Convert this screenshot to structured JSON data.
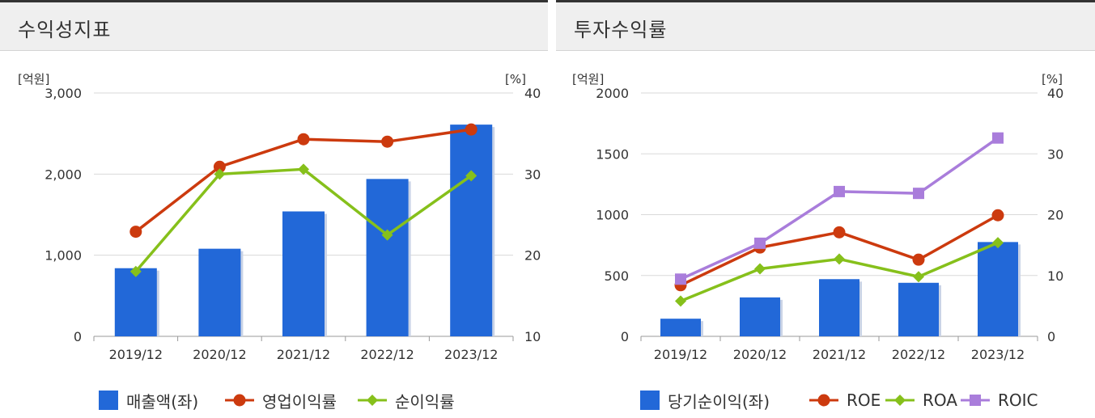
{
  "panels": [
    {
      "title": "수익성지표",
      "legend": [
        {
          "label": "매출액(좌)",
          "color": "#2268d8",
          "marker": "bar"
        },
        {
          "label": "영업이익률",
          "color": "#cc3a0e",
          "marker": "circle"
        },
        {
          "label": "순이익률",
          "color": "#86c01b",
          "marker": "diamond"
        }
      ]
    },
    {
      "title": "투자수익률",
      "legend": [
        {
          "label": "당기순이익(좌)",
          "color": "#2268d8",
          "marker": "bar"
        },
        {
          "label": "ROE",
          "color": "#cc3a0e",
          "marker": "circle"
        },
        {
          "label": "ROA",
          "color": "#86c01b",
          "marker": "diamond"
        },
        {
          "label": "ROIC",
          "color": "#a97ddb",
          "marker": "square"
        }
      ]
    }
  ],
  "chart_data": [
    {
      "type": "bar",
      "categories": [
        "2019/12",
        "2020/12",
        "2021/12",
        "2022/12",
        "2023/12"
      ],
      "left_axis": {
        "unit_label": "[억원]",
        "ylim": [
          0,
          3000
        ],
        "ticks": [
          "0",
          "1,000",
          "2,000",
          "3,000"
        ]
      },
      "right_axis": {
        "unit_label": "[%]",
        "ylim": [
          10,
          40
        ],
        "ticks": [
          "10",
          "20",
          "30",
          "40"
        ]
      },
      "grid": true,
      "legend_position": "bottom",
      "series": [
        {
          "name": "매출액(좌)",
          "type": "bar",
          "axis": "left",
          "color": "#2268d8",
          "values": [
            840,
            1080,
            1540,
            1940,
            2610
          ]
        },
        {
          "name": "영업이익률",
          "type": "line",
          "axis": "right",
          "color": "#cc3a0e",
          "marker": "circle",
          "values": [
            22.9,
            30.9,
            34.3,
            34.0,
            35.5
          ]
        },
        {
          "name": "순이익률",
          "type": "line",
          "axis": "right",
          "color": "#86c01b",
          "marker": "diamond",
          "values": [
            18.0,
            30.0,
            30.6,
            22.5,
            29.8
          ]
        }
      ]
    },
    {
      "type": "bar",
      "categories": [
        "2019/12",
        "2020/12",
        "2021/12",
        "2022/12",
        "2023/12"
      ],
      "left_axis": {
        "unit_label": "[억원]",
        "ylim": [
          0,
          2000
        ],
        "ticks": [
          "0",
          "500",
          "1000",
          "1500",
          "2000"
        ]
      },
      "right_axis": {
        "unit_label": "[%]",
        "ylim": [
          0,
          40
        ],
        "ticks": [
          "0",
          "10",
          "20",
          "30",
          "40"
        ]
      },
      "grid": true,
      "legend_position": "bottom",
      "series": [
        {
          "name": "당기순이익(좌)",
          "type": "bar",
          "axis": "left",
          "color": "#2268d8",
          "values": [
            145,
            320,
            470,
            440,
            775
          ]
        },
        {
          "name": "ROE",
          "type": "line",
          "axis": "right",
          "color": "#cc3a0e",
          "marker": "circle",
          "values": [
            8.4,
            14.6,
            17.1,
            12.6,
            19.9
          ]
        },
        {
          "name": "ROA",
          "type": "line",
          "axis": "right",
          "color": "#86c01b",
          "marker": "diamond",
          "values": [
            5.8,
            11.1,
            12.7,
            9.8,
            15.4
          ]
        },
        {
          "name": "ROIC",
          "type": "line",
          "axis": "right",
          "color": "#a97ddb",
          "marker": "square",
          "values": [
            9.4,
            15.3,
            23.8,
            23.5,
            32.6
          ]
        }
      ]
    }
  ]
}
